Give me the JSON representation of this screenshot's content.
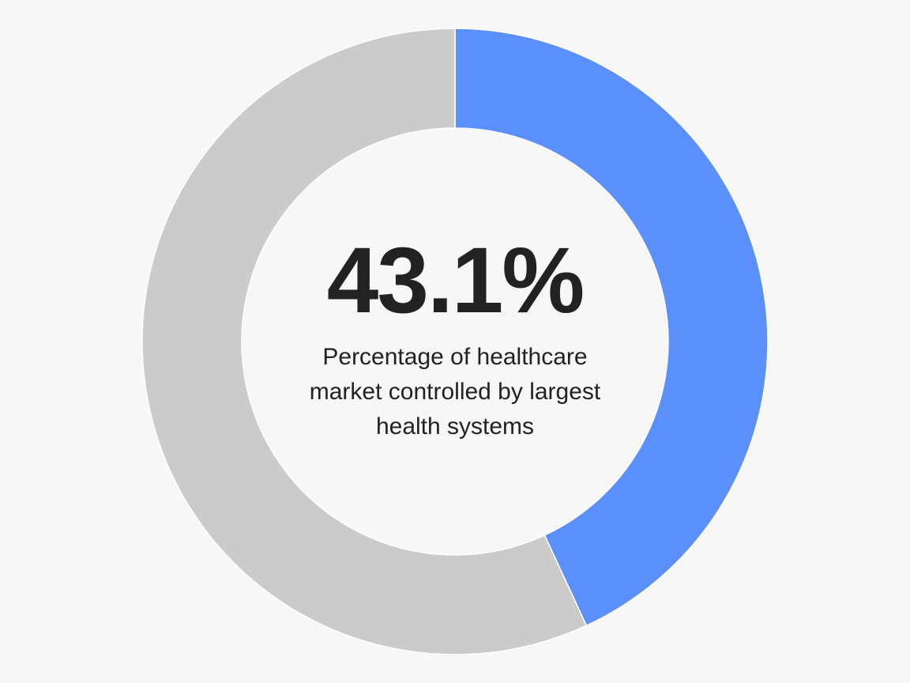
{
  "chart_data": {
    "type": "donut",
    "values": [
      43.1,
      56.9
    ],
    "value_labels": [
      "43.1%",
      null
    ],
    "colors": [
      "#5b8ff9",
      "#cbcbcb"
    ],
    "annotation": "Percentage of healthcare market controlled by largest health systems"
  }
}
